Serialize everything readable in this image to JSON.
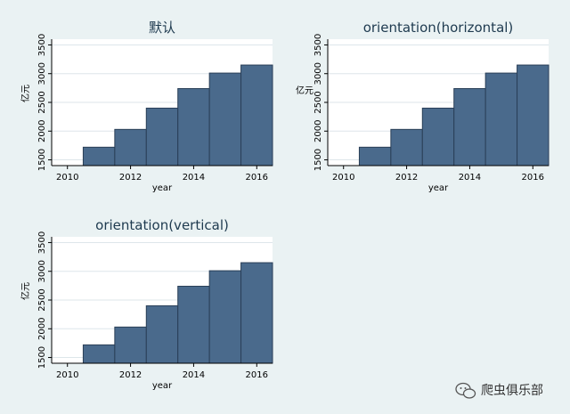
{
  "colors": {
    "background": "#eaf2f3",
    "bar": "#4a6a8c",
    "bar_edge": "#2a3f57",
    "title": "#1e3a4f"
  },
  "watermark": {
    "icon": "wechat-icon",
    "text": "爬虫俱乐部"
  },
  "chart_data": [
    {
      "type": "bar",
      "title": "默认",
      "xlabel": "year",
      "ylabel": "亿元",
      "x": [
        2011,
        2012,
        2013,
        2014,
        2015,
        2016
      ],
      "values": [
        1720,
        2030,
        2400,
        2740,
        3010,
        3150
      ],
      "xlim": [
        2009.5,
        2016.5
      ],
      "ylim": [
        1400,
        3600
      ],
      "xticks": [
        2010,
        2012,
        2014,
        2016
      ],
      "yticks": [
        1500,
        2000,
        2500,
        3000,
        3500
      ],
      "ytick_orientation": "vertical",
      "grid": true
    },
    {
      "type": "bar",
      "title": "orientation(horizontal)",
      "xlabel": "year",
      "ylabel": "亿元",
      "x": [
        2011,
        2012,
        2013,
        2014,
        2015,
        2016
      ],
      "values": [
        1720,
        2030,
        2400,
        2740,
        3010,
        3150
      ],
      "xlim": [
        2009.5,
        2016.5
      ],
      "ylim": [
        1400,
        3600
      ],
      "xticks": [
        2010,
        2012,
        2014,
        2016
      ],
      "yticks": [
        1500,
        2000,
        2500,
        3000,
        3500
      ],
      "ytick_orientation": "vertical",
      "grid": true
    },
    {
      "type": "bar",
      "title": "orientation(vertical)",
      "xlabel": "year",
      "ylabel": "亿元",
      "x": [
        2011,
        2012,
        2013,
        2014,
        2015,
        2016
      ],
      "values": [
        1720,
        2030,
        2400,
        2740,
        3010,
        3150
      ],
      "xlim": [
        2009.5,
        2016.5
      ],
      "ylim": [
        1400,
        3600
      ],
      "xticks": [
        2010,
        2012,
        2014,
        2016
      ],
      "yticks": [
        1500,
        2000,
        2500,
        3000,
        3500
      ],
      "ytick_orientation": "vertical",
      "grid": true
    }
  ]
}
